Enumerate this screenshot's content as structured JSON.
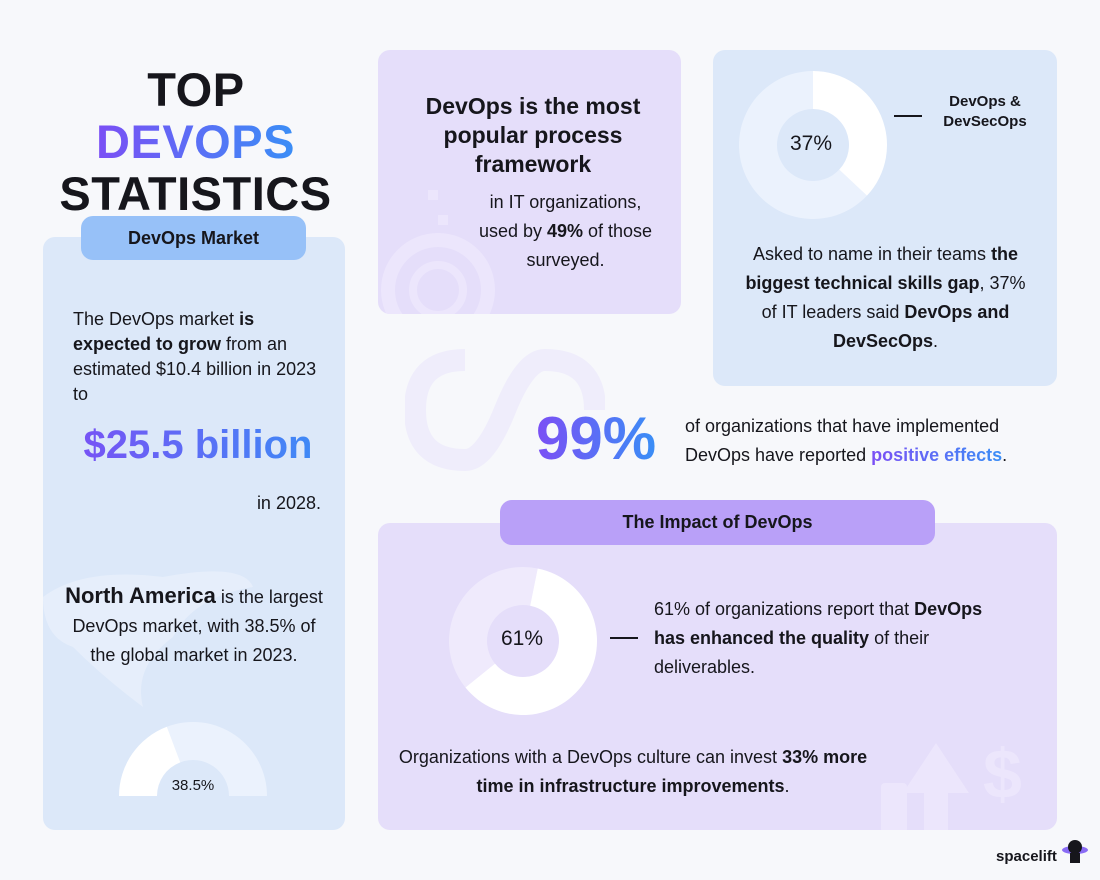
{
  "title": {
    "line1_a": "TOP",
    "line1_b": "DEVOPS",
    "line2": "STATISTICS"
  },
  "market": {
    "tag": "DevOps Market",
    "p1_a": "The DevOps market ",
    "p1_b": "is expected to grow",
    "p1_c": " from an estimated $10.4 billion in 2023 to",
    "big": "$25.5 billion",
    "year": "in 2028.",
    "na_b": "North America",
    "na_a": " is the largest DevOps market, with 38.5% of the global market in 2023.",
    "gauge": {
      "value": 38.5,
      "label": "38.5%"
    }
  },
  "framework": {
    "heading": "DevOps is the most popular process framework",
    "p_a": "in IT organizations, used by ",
    "p_b": "49%",
    "p_c": " of those surveyed."
  },
  "skills": {
    "donut": {
      "value": 37,
      "label": "37%"
    },
    "legend": "DevOps & DevSecOps",
    "p_a": "Asked to name in their teams ",
    "p_b": "the biggest technical skills gap",
    "p_c": ", 37% of IT leaders said ",
    "p_d": "DevOps and DevSecOps",
    "p_e": "."
  },
  "positive": {
    "big": "99%",
    "p_a": "of organizations that have implemented DevOps have reported ",
    "p_b": "positive effects",
    "p_c": "."
  },
  "impact": {
    "tag": "The Impact of DevOps",
    "donut": {
      "value": 61,
      "label": "61%"
    },
    "p_a": "61% of organizations report that ",
    "p_b": "DevOps has enhanced the quality",
    "p_c": " of their deliverables.",
    "q_a": "Organizations with a DevOps culture can invest ",
    "q_b": "33% more time in infrastructure improvements",
    "q_c": "."
  },
  "brand": {
    "name": "spacelift"
  },
  "colors": {
    "purple": "#7b4ff5",
    "blue": "#3a8ef6",
    "card_blue": "#dce8f9",
    "card_purple": "#e5defa",
    "tag_blue": "#97c1f8",
    "tag_purple": "#b9a0f8"
  }
}
